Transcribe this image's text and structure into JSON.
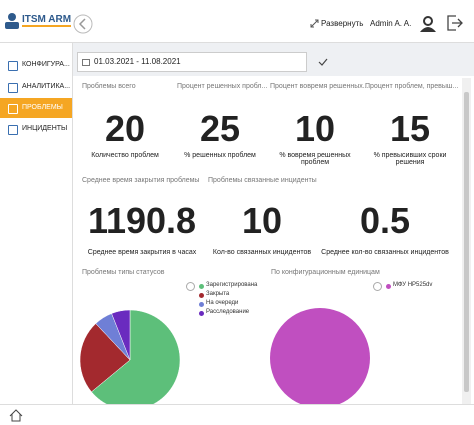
{
  "header": {
    "logo": "ITSM ARM",
    "expand": "Развернуть",
    "user": "Admin A. A."
  },
  "sidebar": {
    "items": [
      "КОНФИГУРА...",
      "АНАЛИТИКА...",
      "ПРОБЛЕМЫ",
      "ИНЦИДЕНТЫ"
    ]
  },
  "filter": {
    "date_range": "01.03.2021 - 11.08.2021"
  },
  "kpis": [
    {
      "header": "Проблемы всего",
      "value": 20,
      "caption": "Количество проблем"
    },
    {
      "header": "Процент решенных пробл...",
      "value": 25,
      "caption": "% решенных проблем"
    },
    {
      "header": "Процент вовремя решенных...",
      "value": 10,
      "caption": "% вовремя решенных проблем"
    },
    {
      "header": "Процент проблем, превыш...",
      "value": 15,
      "caption": "% превысивших сроки решения"
    }
  ],
  "groups": [
    {
      "header": "Среднее время закрытия проблемы",
      "cards": [
        {
          "value": 1190.8,
          "caption": "Среднее время закрытия в часах"
        }
      ]
    },
    {
      "header": "Проблемы связанные инциденты",
      "cards": [
        {
          "value": 10,
          "caption": "Кол-во связанных инцидентов"
        },
        {
          "value": 0.5,
          "caption": "Среднее кол-во связанных инцидентов"
        }
      ]
    }
  ],
  "charts": [
    {
      "type": "pie",
      "title": "Проблемы типы статусов",
      "series": [
        {
          "name": "Зарегистрирована",
          "color": "#5dbf7a",
          "value": 64
        },
        {
          "name": "Закрыта",
          "color": "#a3292e",
          "value": 24
        },
        {
          "name": "На очереди",
          "color": "#6f7fd6",
          "value": 6
        },
        {
          "name": "Расследование",
          "color": "#6a2bbf",
          "value": 6
        }
      ]
    },
    {
      "type": "pie",
      "title": "По конфигурационным единицам",
      "series": [
        {
          "name": "МФУ HP525dv",
          "color": "#c04fc0",
          "value": 100
        }
      ]
    }
  ]
}
